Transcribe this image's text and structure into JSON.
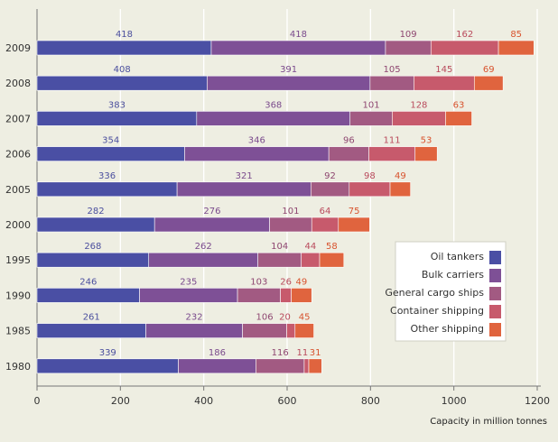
{
  "chart_data": {
    "type": "bar",
    "orientation": "horizontal",
    "stacked": true,
    "categories": [
      "2009",
      "2008",
      "2007",
      "2006",
      "2005",
      "2000",
      "1995",
      "1990",
      "1985",
      "1980"
    ],
    "series": [
      {
        "name": "Oil tankers",
        "values": [
          418,
          408,
          383,
          354,
          336,
          282,
          268,
          246,
          261,
          339
        ],
        "color": "#4a4fa4"
      },
      {
        "name": "Bulk carriers",
        "values": [
          418,
          391,
          368,
          346,
          321,
          276,
          262,
          235,
          232,
          186
        ],
        "color": "#7e5096"
      },
      {
        "name": "General cargo ships",
        "values": [
          109,
          105,
          101,
          96,
          92,
          101,
          104,
          103,
          106,
          116
        ],
        "color": "#a25a82"
      },
      {
        "name": "Container shipping",
        "values": [
          162,
          145,
          128,
          111,
          98,
          64,
          44,
          26,
          20,
          11
        ],
        "color": "#c75a6c"
      },
      {
        "name": "Other shipping",
        "values": [
          85,
          69,
          63,
          53,
          49,
          75,
          58,
          49,
          45,
          31
        ],
        "color": "#e0643e"
      }
    ],
    "xlabel": "Capacity in million tonnes",
    "xlim": [
      0,
      1200
    ],
    "xticks": [
      "0",
      "200",
      "400",
      "600",
      "800",
      "1000",
      "1200"
    ],
    "grid": true,
    "legend_position": "right"
  }
}
